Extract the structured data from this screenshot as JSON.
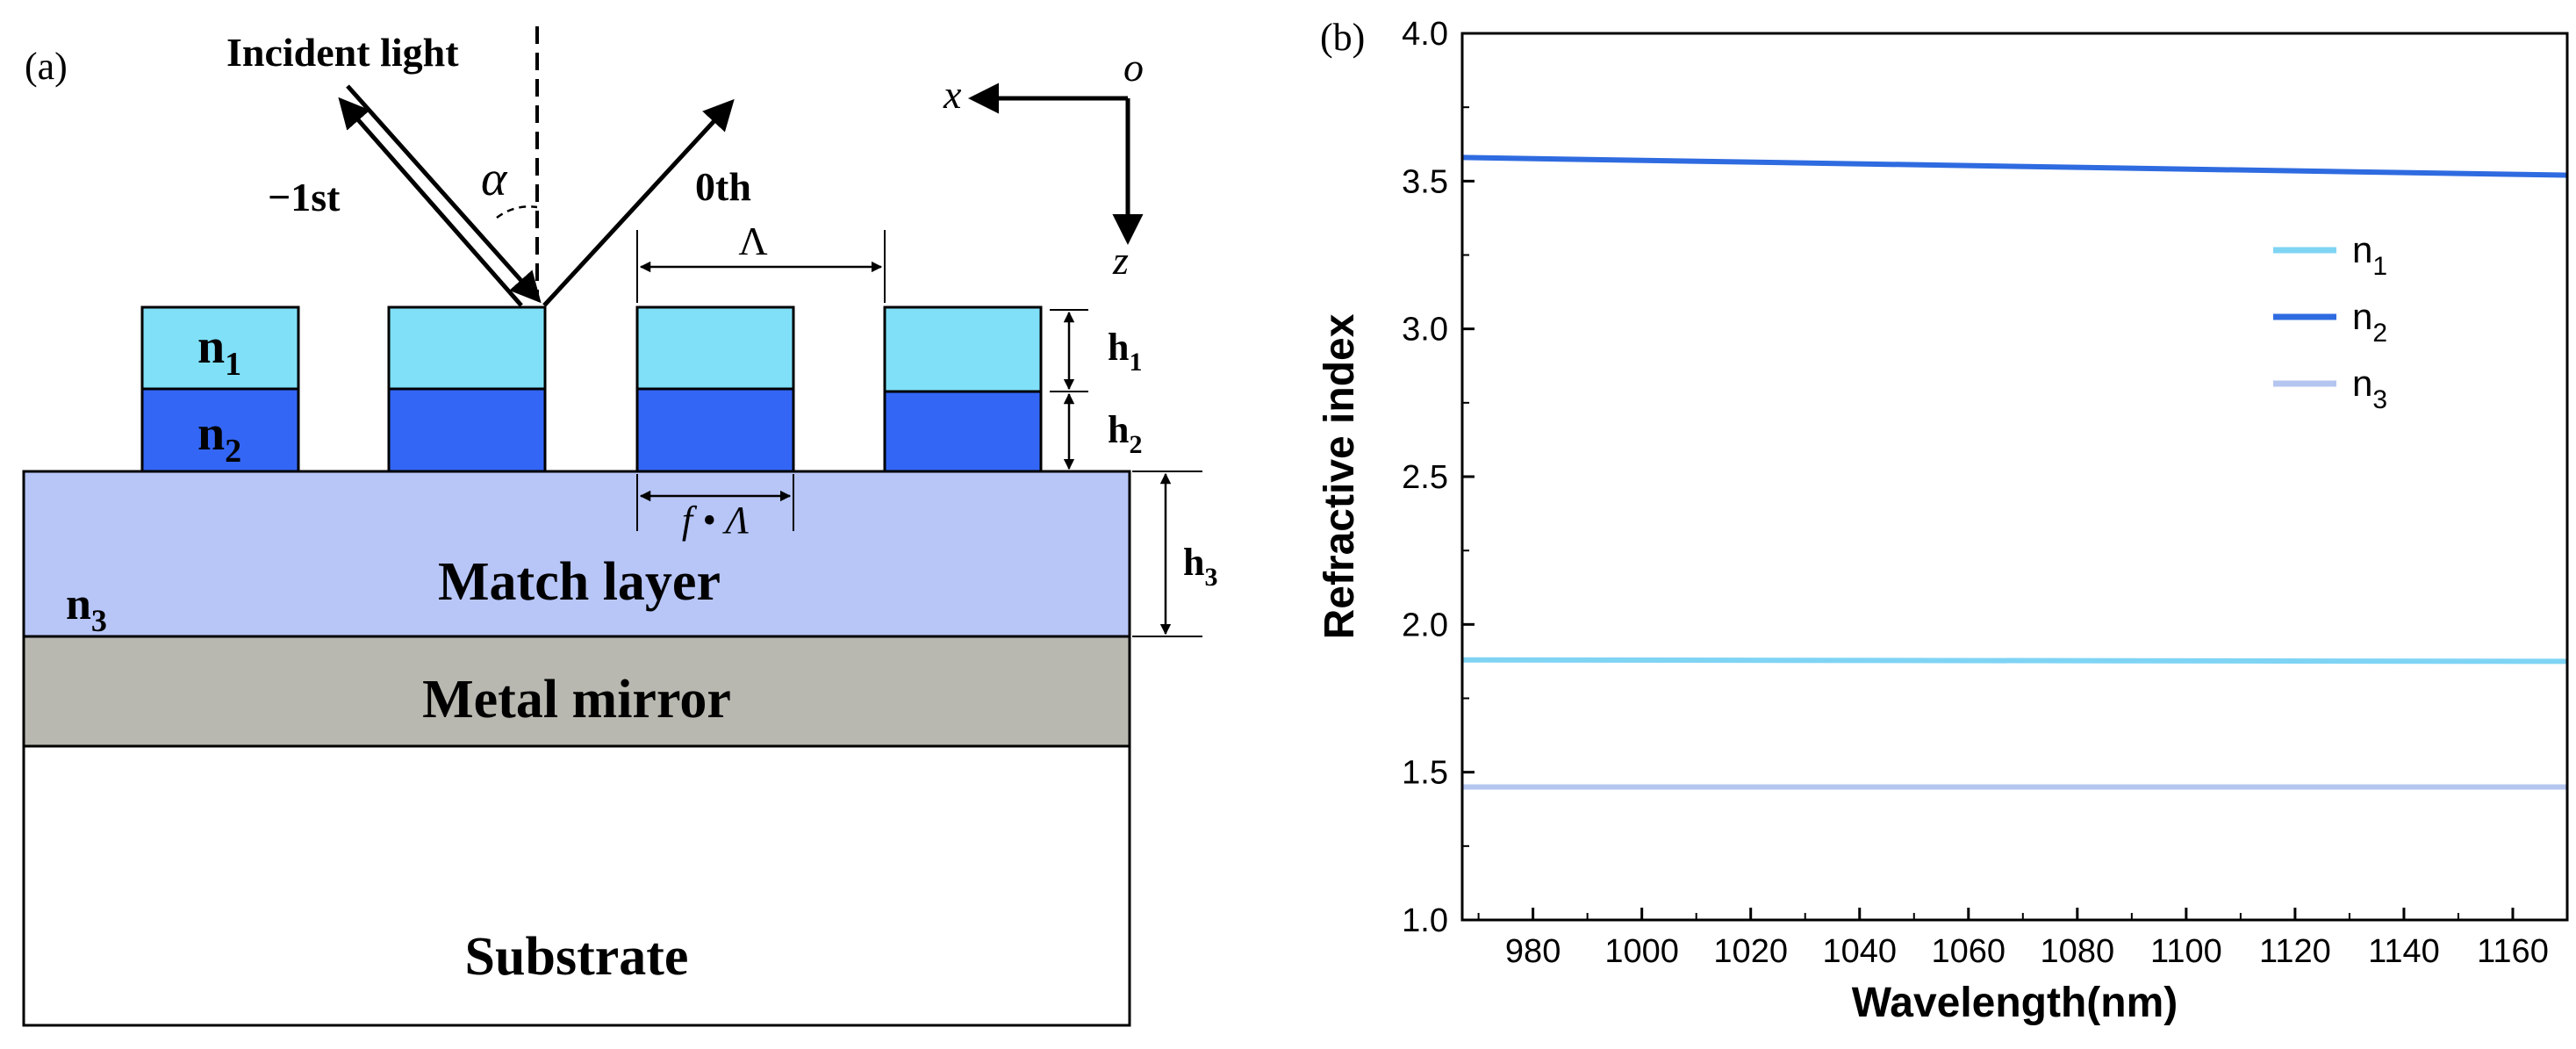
{
  "panel_a": {
    "label": "(a)",
    "incident_light": "Incident light",
    "minus_first_order": "−1st",
    "zeroth_order": "0th",
    "angle_symbol": "α",
    "period_symbol": "Λ",
    "fill_factor_label": "f • Λ",
    "axis_x": "x",
    "axis_o": "o",
    "axis_z": "z",
    "n1": {
      "base": "n",
      "sub": "1"
    },
    "n2": {
      "base": "n",
      "sub": "2"
    },
    "n3": {
      "base": "n",
      "sub": "3"
    },
    "h1": {
      "base": "h",
      "sub": "1"
    },
    "h2": {
      "base": "h",
      "sub": "2"
    },
    "h3": {
      "base": "h",
      "sub": "3"
    },
    "match_layer": "Match layer",
    "metal_mirror": "Metal mirror",
    "substrate": "Substrate",
    "colors": {
      "n1_fill": "#7fe0f8",
      "n2_fill": "#3366f5",
      "match_fill": "#b7c5f7",
      "mirror_fill": "#b8b8b0",
      "substrate_fill": "#ffffff"
    }
  },
  "chart_data": {
    "type": "line",
    "panel_label": "(b)",
    "title": "",
    "xlabel": "Wavelength(nm)",
    "ylabel": "Refractive index",
    "xlim": [
      967,
      1170
    ],
    "ylim": [
      1.0,
      4.0
    ],
    "xticks": [
      980,
      1000,
      1020,
      1040,
      1060,
      1080,
      1100,
      1120,
      1140,
      1160
    ],
    "yticks": [
      1.0,
      1.5,
      2.0,
      2.5,
      3.0,
      3.5,
      4.0
    ],
    "legend_position": "upper-right",
    "series": [
      {
        "name": "n",
        "sub": "1",
        "color": "#7fd4f4",
        "x": [
          967,
          1170
        ],
        "y": [
          1.88,
          1.875
        ]
      },
      {
        "name": "n",
        "sub": "2",
        "color": "#2f6be0",
        "x": [
          967,
          1170
        ],
        "y": [
          3.58,
          3.52
        ]
      },
      {
        "name": "n",
        "sub": "3",
        "color": "#b4c6ef",
        "x": [
          967,
          1170
        ],
        "y": [
          1.45,
          1.45
        ]
      }
    ]
  }
}
